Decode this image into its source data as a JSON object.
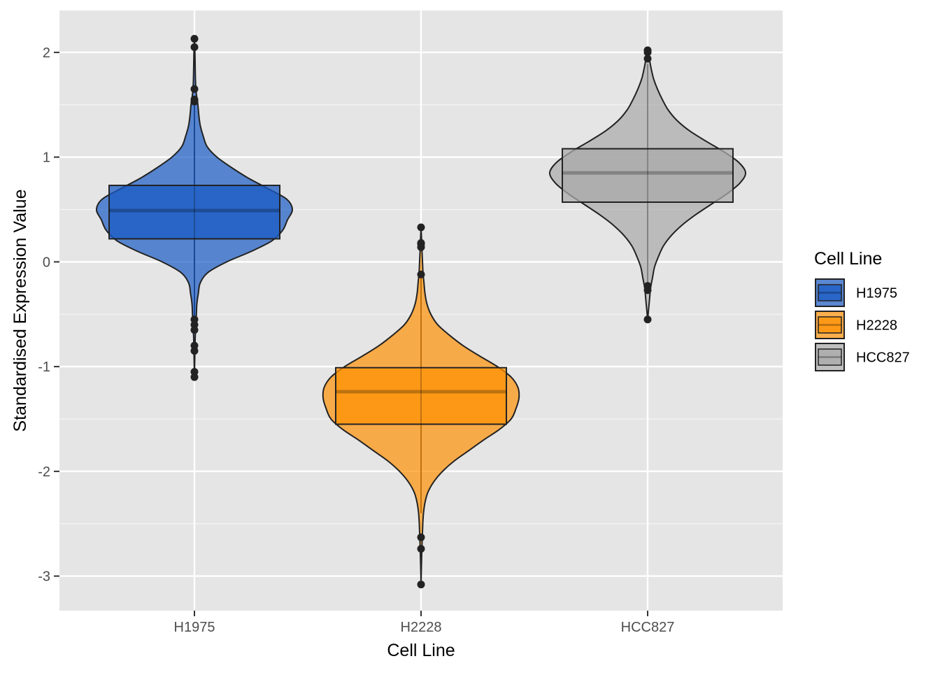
{
  "chart_data": {
    "type": "violin",
    "title": "",
    "xlabel": "Cell Line",
    "ylabel": "Standardised Expression Value",
    "ylim": [
      -3.33,
      2.4
    ],
    "yticks": [
      -3,
      -2,
      -1,
      0,
      1,
      2
    ],
    "ytick_labels": [
      "-3",
      "-2",
      "-1",
      "0",
      "1",
      "2"
    ],
    "grid": true,
    "legend": {
      "title": "Cell Line",
      "placement": "right",
      "entries": [
        "H1975",
        "H2228",
        "HCC827"
      ]
    },
    "categories": [
      "H1975",
      "H2228",
      "HCC827"
    ],
    "series": [
      {
        "name": "H1975",
        "color": "#1a5bc4",
        "box": {
          "q1": 0.22,
          "median": 0.49,
          "q3": 0.73,
          "whisker_low": -0.54,
          "whisker_high": 1.52
        },
        "density": [
          [
            -1.1,
            0.0
          ],
          [
            -1.0,
            0.002
          ],
          [
            -0.9,
            0.004
          ],
          [
            -0.8,
            0.006
          ],
          [
            -0.7,
            0.009
          ],
          [
            -0.6,
            0.015
          ],
          [
            -0.5,
            0.02
          ],
          [
            -0.4,
            0.025
          ],
          [
            -0.3,
            0.04
          ],
          [
            -0.2,
            0.06
          ],
          [
            -0.1,
            0.14
          ],
          [
            0.0,
            0.33
          ],
          [
            0.1,
            0.58
          ],
          [
            0.2,
            0.79
          ],
          [
            0.3,
            0.9
          ],
          [
            0.4,
            0.95
          ],
          [
            0.5,
            1.0
          ],
          [
            0.6,
            0.94
          ],
          [
            0.7,
            0.75
          ],
          [
            0.8,
            0.55
          ],
          [
            0.9,
            0.38
          ],
          [
            1.0,
            0.23
          ],
          [
            1.1,
            0.13
          ],
          [
            1.2,
            0.09
          ],
          [
            1.3,
            0.06
          ],
          [
            1.4,
            0.045
          ],
          [
            1.5,
            0.035
          ],
          [
            1.6,
            0.02
          ],
          [
            1.7,
            0.012
          ],
          [
            1.8,
            0.009
          ],
          [
            1.9,
            0.007
          ],
          [
            2.0,
            0.005
          ],
          [
            2.13,
            0.0
          ]
        ],
        "outliers": [
          -1.1,
          -1.05,
          -0.85,
          -0.8,
          -0.65,
          -0.6,
          -0.55,
          1.53,
          1.55,
          1.65,
          2.05,
          2.13
        ]
      },
      {
        "name": "H2228",
        "color": "#ff9206",
        "box": {
          "q1": -1.55,
          "median": -1.24,
          "q3": -1.01,
          "whisker_low": -2.4,
          "whisker_high": -0.14
        },
        "density": [
          [
            -3.08,
            0.0
          ],
          [
            -2.9,
            0.004
          ],
          [
            -2.7,
            0.01
          ],
          [
            -2.5,
            0.018
          ],
          [
            -2.4,
            0.025
          ],
          [
            -2.3,
            0.04
          ],
          [
            -2.2,
            0.07
          ],
          [
            -2.1,
            0.13
          ],
          [
            -2.0,
            0.22
          ],
          [
            -1.9,
            0.34
          ],
          [
            -1.8,
            0.49
          ],
          [
            -1.7,
            0.64
          ],
          [
            -1.6,
            0.8
          ],
          [
            -1.5,
            0.92
          ],
          [
            -1.4,
            0.97
          ],
          [
            -1.3,
            1.0
          ],
          [
            -1.2,
            0.99
          ],
          [
            -1.1,
            0.92
          ],
          [
            -1.0,
            0.78
          ],
          [
            -0.9,
            0.6
          ],
          [
            -0.8,
            0.43
          ],
          [
            -0.7,
            0.29
          ],
          [
            -0.6,
            0.17
          ],
          [
            -0.5,
            0.1
          ],
          [
            -0.4,
            0.06
          ],
          [
            -0.3,
            0.04
          ],
          [
            -0.2,
            0.03
          ],
          [
            -0.1,
            0.02
          ],
          [
            0.0,
            0.015
          ],
          [
            0.1,
            0.01
          ],
          [
            0.2,
            0.006
          ],
          [
            0.33,
            0.0
          ]
        ],
        "outliers": [
          -3.08,
          -2.74,
          -2.63,
          -0.12,
          0.14,
          0.17,
          0.18,
          0.33
        ]
      },
      {
        "name": "HCC827",
        "color": "#aaaaaa",
        "box": {
          "q1": 0.57,
          "median": 0.85,
          "q3": 1.08,
          "whisker_low": -0.24,
          "whisker_high": 1.89
        },
        "density": [
          [
            -0.55,
            0.0
          ],
          [
            -0.45,
            0.01
          ],
          [
            -0.35,
            0.02
          ],
          [
            -0.25,
            0.03
          ],
          [
            -0.15,
            0.05
          ],
          [
            -0.05,
            0.07
          ],
          [
            0.05,
            0.11
          ],
          [
            0.15,
            0.16
          ],
          [
            0.25,
            0.24
          ],
          [
            0.35,
            0.35
          ],
          [
            0.45,
            0.49
          ],
          [
            0.55,
            0.65
          ],
          [
            0.65,
            0.81
          ],
          [
            0.75,
            0.94
          ],
          [
            0.85,
            1.0
          ],
          [
            0.95,
            0.93
          ],
          [
            1.05,
            0.78
          ],
          [
            1.15,
            0.6
          ],
          [
            1.25,
            0.43
          ],
          [
            1.35,
            0.3
          ],
          [
            1.45,
            0.21
          ],
          [
            1.55,
            0.15
          ],
          [
            1.65,
            0.1
          ],
          [
            1.75,
            0.06
          ],
          [
            1.85,
            0.035
          ],
          [
            1.95,
            0.015
          ],
          [
            2.02,
            0.0
          ]
        ],
        "outliers": [
          -0.55,
          -0.27,
          -0.23,
          1.94,
          2.0,
          2.02
        ]
      }
    ]
  }
}
